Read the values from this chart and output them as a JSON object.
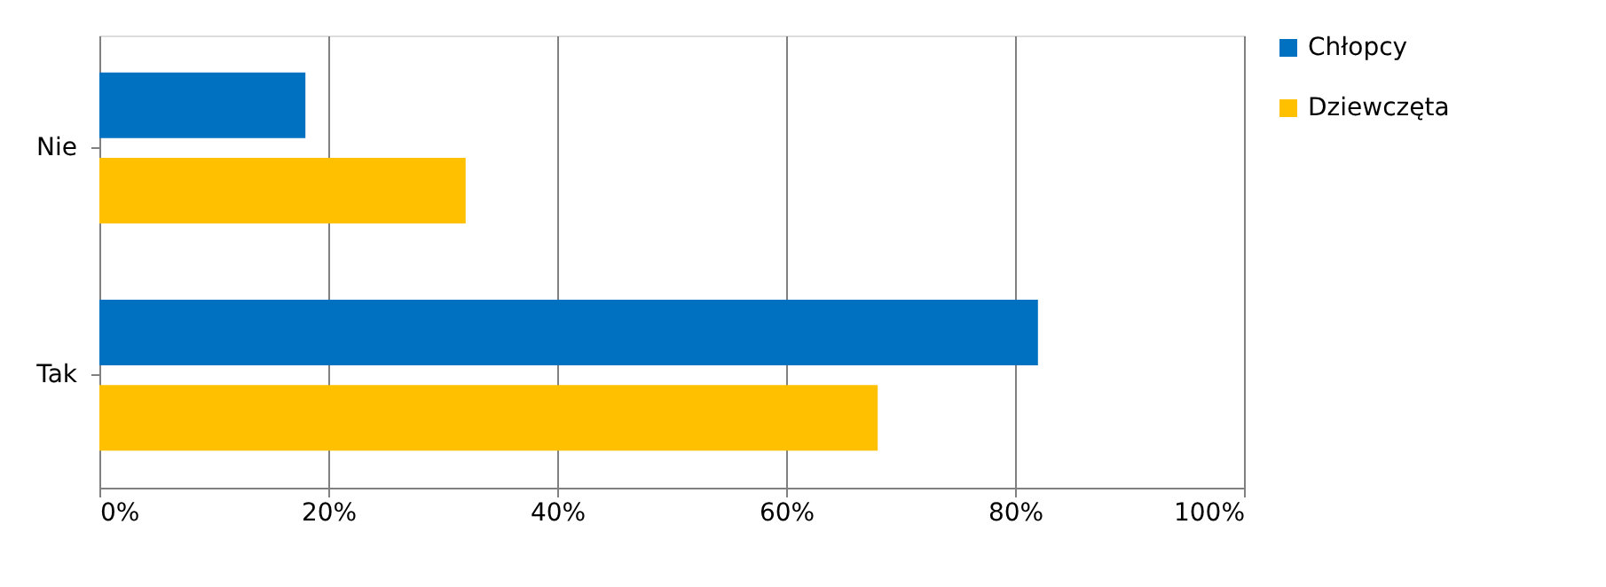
{
  "chart_data": {
    "type": "bar",
    "orientation": "horizontal",
    "categories": [
      "Nie",
      "Tak"
    ],
    "series": [
      {
        "name": "Chłopcy",
        "color": "#0070c0",
        "values": [
          18,
          82
        ]
      },
      {
        "name": "Dziewczęta",
        "color": "#ffc000",
        "values": [
          32,
          68
        ]
      }
    ],
    "xlim": [
      0,
      100
    ],
    "xticks": [
      {
        "value": 0,
        "label": "0%"
      },
      {
        "value": 20,
        "label": "20%"
      },
      {
        "value": 40,
        "label": "40%"
      },
      {
        "value": 60,
        "label": "60%"
      },
      {
        "value": 80,
        "label": "80%"
      },
      {
        "value": 100,
        "label": "100%"
      }
    ],
    "grid": "x",
    "legend": "right"
  }
}
